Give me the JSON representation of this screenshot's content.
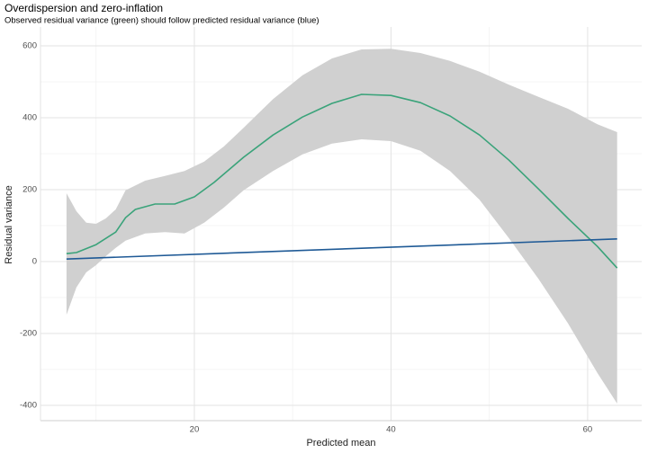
{
  "chart_data": {
    "type": "line",
    "title": "Overdispersion and zero-inflation",
    "subtitle": "Observed residual variance (green) should follow predicted residual variance (blue)",
    "xlabel": "Predicted mean",
    "ylabel": "Residual variance",
    "xlim": [
      4.35,
      65.5
    ],
    "ylim": [
      -442.5,
      652.5
    ],
    "xticks": [
      20,
      40,
      60
    ],
    "yticks": [
      -400,
      -200,
      0,
      200,
      400,
      600
    ],
    "grid": true,
    "ribbon": {
      "color": "#d0d0d0",
      "x": [
        7,
        8,
        9,
        10,
        11,
        12,
        13,
        15,
        17,
        19,
        21,
        23,
        25,
        28,
        31,
        34,
        37,
        40,
        43,
        46,
        49,
        52,
        55,
        58,
        61,
        63
      ],
      "upper": [
        190,
        140,
        108,
        105,
        120,
        145,
        198,
        225,
        238,
        252,
        278,
        320,
        372,
        452,
        518,
        565,
        590,
        592,
        580,
        558,
        528,
        492,
        458,
        425,
        382,
        360
      ],
      "lower": [
        -148,
        -72,
        -30,
        -10,
        15,
        38,
        58,
        78,
        82,
        78,
        108,
        150,
        198,
        252,
        298,
        328,
        340,
        335,
        308,
        252,
        172,
        65,
        -48,
        -172,
        -310,
        -395
      ]
    },
    "series": [
      {
        "color": "#3aa37a",
        "x": [
          7,
          8,
          10,
          12,
          13,
          14,
          16,
          18,
          20,
          22,
          25,
          28,
          31,
          34,
          37,
          40,
          43,
          46,
          49,
          52,
          55,
          58,
          61,
          63
        ],
        "values": [
          22,
          25,
          47,
          82,
          122,
          145,
          160,
          160,
          180,
          220,
          290,
          352,
          402,
          440,
          465,
          462,
          442,
          405,
          352,
          282,
          202,
          120,
          42,
          -18
        ]
      },
      {
        "color": "#1f5a96",
        "x": [
          7,
          63
        ],
        "values": [
          7,
          63
        ]
      }
    ]
  }
}
